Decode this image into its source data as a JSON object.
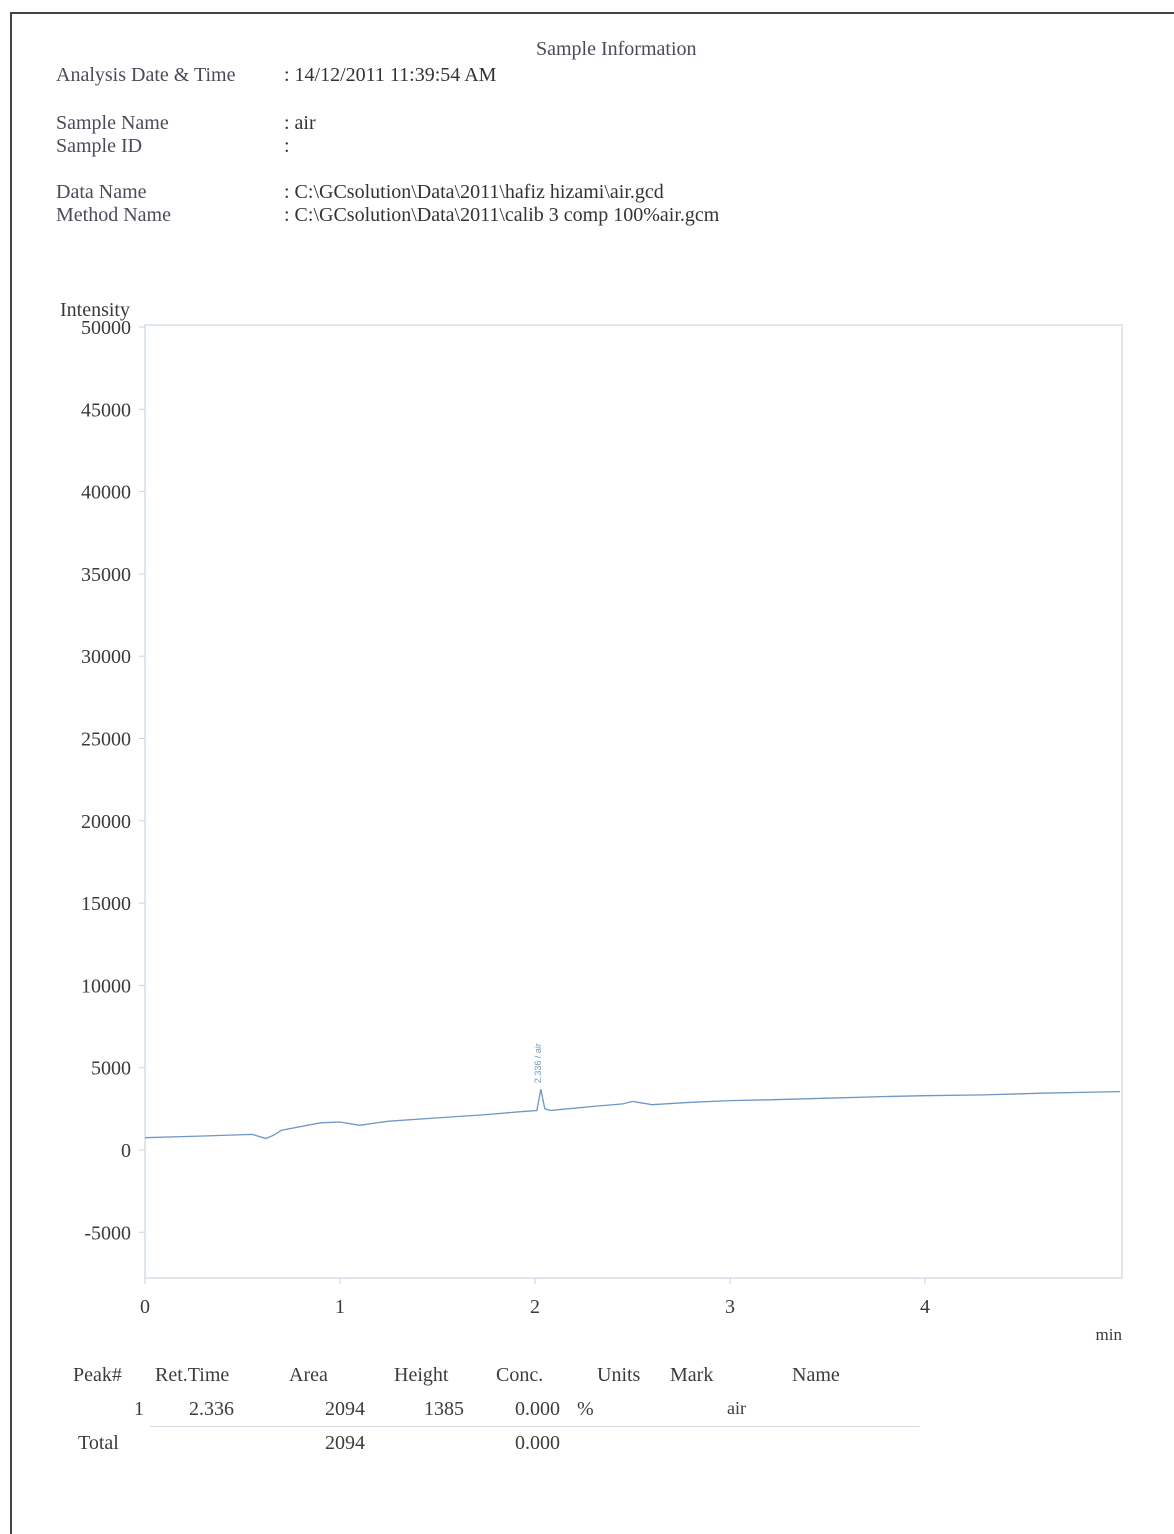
{
  "header": {
    "title": "Sample Information",
    "fields": [
      {
        "label": "Analysis Date & Time",
        "value": ": 14/12/2011 11:39:54 AM"
      },
      {
        "label": "Sample Name",
        "value": ": air"
      },
      {
        "label": "Sample ID",
        "value": ":"
      },
      {
        "label": "Data Name",
        "value": ": C:\\GCsolution\\Data\\2011\\hafiz hizami\\air.gcd"
      },
      {
        "label": "Method Name",
        "value": ": C:\\GCsolution\\Data\\2011\\calib 3 comp 100%air.gcm"
      }
    ]
  },
  "chart_data": {
    "type": "line",
    "ylabel": "Intensity",
    "xlabel": "min",
    "xlim": [
      0,
      5
    ],
    "ylim": [
      -7500,
      50000
    ],
    "yticks": [
      50000,
      45000,
      40000,
      35000,
      30000,
      25000,
      20000,
      15000,
      10000,
      5000,
      0,
      -5000
    ],
    "xticks": [
      0,
      1,
      2,
      3,
      4
    ],
    "grid": false,
    "peak_label": "2.336 / air",
    "series": [
      {
        "x": [
          0,
          0.3,
          0.55,
          0.62,
          0.66,
          0.7,
          0.9,
          1.0,
          1.1,
          1.25,
          1.5,
          1.75,
          1.95,
          2.01,
          2.03,
          2.05,
          2.08,
          2.12,
          2.3,
          2.45,
          2.5,
          2.6,
          2.8,
          3.0,
          3.2,
          3.5,
          3.8,
          4.0,
          4.3,
          4.6,
          4.8,
          5.0
        ],
        "y": [
          750,
          850,
          950,
          700,
          900,
          1200,
          1650,
          1700,
          1500,
          1750,
          1950,
          2150,
          2350,
          2400,
          3700,
          2500,
          2400,
          2450,
          2650,
          2800,
          2950,
          2750,
          2900,
          3000,
          3050,
          3150,
          3250,
          3300,
          3350,
          3450,
          3500,
          3550
        ]
      }
    ]
  },
  "peak_table": {
    "headers": [
      "Peak#",
      "Ret.Time",
      "Area",
      "Height",
      "Conc.",
      "Units",
      "Mark",
      "Name"
    ],
    "rows": [
      {
        "peak": "1",
        "ret_time": "2.336",
        "area": "2094",
        "height": "1385",
        "conc": "0.000",
        "units": "%",
        "mark": "",
        "name": "air"
      }
    ],
    "total": {
      "label": "Total",
      "area": "2094",
      "conc": "0.000"
    }
  }
}
